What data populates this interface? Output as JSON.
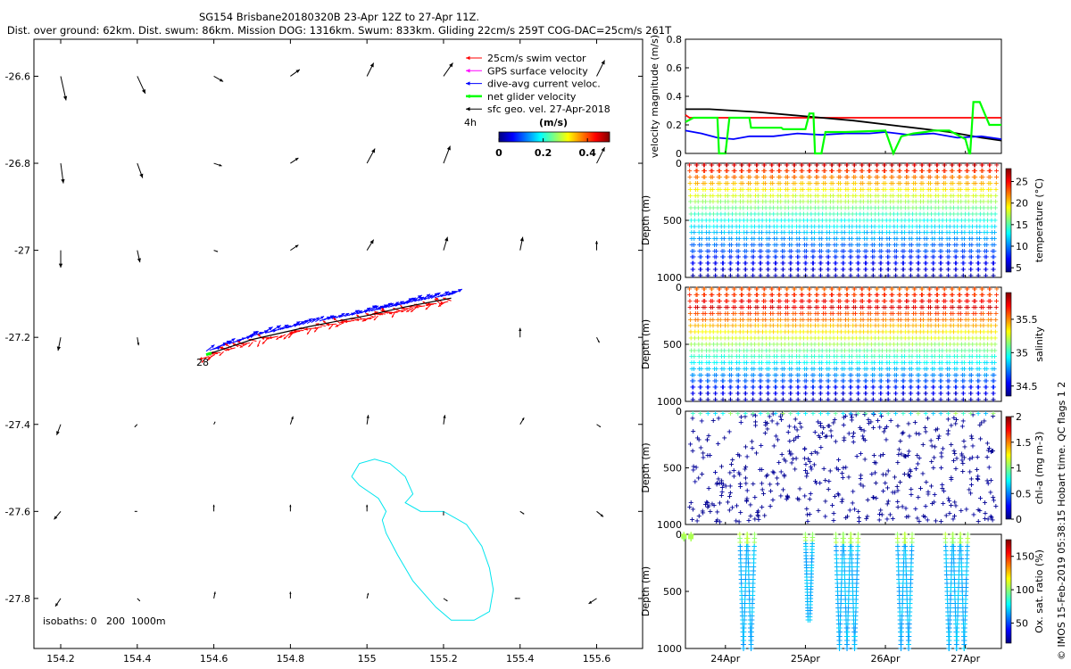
{
  "header": {
    "line1": "SG154 Brisbane20180320B 23-Apr 12Z to 27-Apr 11Z.",
    "line2": "Dist. over ground: 62km. Dist. swum: 86km. Mission DOG: 1316km. Swum: 833km. Gliding 22cm/s 259T COG-DAC=25cm/s 261T"
  },
  "footer": {
    "imos": "© IMOS 15-Feb-2019 05:38:15 Hobart time. QC flags 1  2"
  },
  "colors": {
    "swim": "#ff0000",
    "gps": "#ff00ff",
    "dac": "#0000ff",
    "net": "#00ff00",
    "sfc": "#000000",
    "isobath": "#00e5ee"
  },
  "chart_data": [
    {
      "type": "map",
      "xlabel": "Longitude",
      "ylabel": "Latitude",
      "xlim": [
        154.13,
        155.72
      ],
      "ylim": [
        -27.915,
        -26.515
      ],
      "x_ticks": [
        154.2,
        154.4,
        154.6,
        154.8,
        155,
        155.2,
        155.4,
        155.6
      ],
      "x_tick_labels": [
        "154.2",
        "154.4",
        "154.6",
        "154.8",
        "155",
        "155.2",
        "155.4",
        "155.6"
      ],
      "y_ticks": [
        -26.6,
        -26.8,
        -27,
        -27.2,
        -27.4,
        -27.6,
        -27.8
      ],
      "y_tick_labels": [
        "-26.6",
        "-26.8",
        "-27",
        "-27.2",
        "-27.4",
        "-27.6",
        "-27.8"
      ],
      "legend": [
        {
          "label": "25cm/s swim vector",
          "color": "#ff0000"
        },
        {
          "label": "GPS surface velocity",
          "color": "#ff00ff"
        },
        {
          "label": "dive-avg current veloc.",
          "color": "#0000ff"
        },
        {
          "label": "net glider velocity",
          "color": "#00ff00"
        },
        {
          "label": "sfc geo. vel. 27-Apr-2018",
          "color": "#000000"
        }
      ],
      "colorbar": {
        "label": "(m/s)",
        "time_note": "4h",
        "ticks": [
          "0",
          "0.2",
          "0.4"
        ],
        "range": [
          0,
          0.5
        ]
      },
      "track_label": "28",
      "isobath_note": "isobaths: 0   200  1000m",
      "track": {
        "lon": [
          154.58,
          154.7,
          154.85,
          155.0,
          155.1,
          155.22
        ],
        "lat": [
          -27.24,
          -27.205,
          -27.175,
          -27.15,
          -27.13,
          -27.11
        ]
      },
      "isobath_1000m": {
        "lon": [
          154.96,
          154.98,
          155.02,
          155.06,
          155.1,
          155.12,
          155.1,
          155.14,
          155.2,
          155.26,
          155.3,
          155.32,
          155.33,
          155.32,
          155.28,
          155.22,
          155.18,
          155.12,
          155.08,
          155.05,
          155.04,
          155.05,
          155.03,
          154.98,
          154.96
        ],
        "lat": [
          -27.52,
          -27.49,
          -27.48,
          -27.49,
          -27.52,
          -27.56,
          -27.58,
          -27.6,
          -27.6,
          -27.63,
          -27.68,
          -27.73,
          -27.78,
          -27.83,
          -27.85,
          -27.85,
          -27.82,
          -27.76,
          -27.7,
          -27.65,
          -27.62,
          -27.6,
          -27.57,
          -27.54,
          -27.52
        ]
      },
      "sfc_vectors": {
        "lons": [
          154.2,
          154.4,
          154.6,
          154.8,
          155.0,
          155.2,
          155.4,
          155.6
        ],
        "rows": [
          {
            "lat": -26.6,
            "u": [
              0.04,
              0.06,
              0.07,
              0.07,
              0.05,
              0.07,
              null,
              0.06
            ],
            "v": [
              -0.18,
              -0.13,
              -0.04,
              0.05,
              0.1,
              0.1,
              null,
              0.12
            ]
          },
          {
            "lat": -26.8,
            "u": [
              0.02,
              0.04,
              0.06,
              0.06,
              0.06,
              0.05,
              null,
              0.06
            ],
            "v": [
              -0.15,
              -0.11,
              -0.02,
              0.04,
              0.11,
              0.13,
              null,
              0.12
            ]
          },
          {
            "lat": -27.0,
            "u": [
              0.0,
              0.02,
              0.03,
              0.06,
              0.05,
              0.03,
              0.02,
              0.0
            ],
            "v": [
              -0.13,
              -0.09,
              -0.01,
              0.04,
              0.08,
              0.1,
              0.1,
              0.07
            ]
          },
          {
            "lat": -27.2,
            "u": [
              -0.02,
              0.01,
              null,
              null,
              null,
              null,
              0.0,
              0.02
            ],
            "v": [
              -0.1,
              -0.06,
              null,
              null,
              null,
              null,
              0.07,
              -0.04
            ]
          },
          {
            "lat": -27.4,
            "u": [
              -0.03,
              -0.02,
              0.01,
              0.02,
              0.01,
              0.01,
              0.03,
              0.03
            ],
            "v": [
              -0.08,
              -0.02,
              0.02,
              0.06,
              0.07,
              0.07,
              0.05,
              -0.02
            ]
          },
          {
            "lat": -27.6,
            "u": [
              -0.05,
              -0.02,
              0.0,
              0.0,
              0.0,
              0.0,
              0.03,
              0.05
            ],
            "v": [
              -0.06,
              0.0,
              0.05,
              0.05,
              0.05,
              -0.03,
              -0.02,
              -0.04
            ]
          },
          {
            "lat": -27.8,
            "u": [
              -0.04,
              0.02,
              0.01,
              0.0,
              0.01,
              0.03,
              -0.04,
              -0.06
            ],
            "v": [
              -0.06,
              -0.02,
              0.05,
              0.05,
              0.04,
              -0.02,
              0.0,
              -0.04
            ]
          }
        ]
      }
    },
    {
      "type": "line",
      "ylabel": "velocity magnitude (m/s)",
      "ylim": [
        0,
        0.8
      ],
      "yticks": [
        "0",
        "0.2",
        "0.4",
        "0.6",
        "0.8"
      ],
      "xlim_day": [
        23.5,
        27.45
      ],
      "series": [
        {
          "name": "swim vector",
          "color": "#ff0000",
          "t": [
            23.5,
            23.55,
            27.45
          ],
          "y": [
            0.27,
            0.25,
            0.25
          ]
        },
        {
          "name": "sfc geo. vel.",
          "color": "#000000",
          "t": [
            23.5,
            23.8,
            24.4,
            25.0,
            25.6,
            26.2,
            26.8,
            27.2,
            27.45
          ],
          "y": [
            0.31,
            0.31,
            0.29,
            0.26,
            0.23,
            0.19,
            0.15,
            0.11,
            0.09
          ]
        },
        {
          "name": "dive-avg current",
          "color": "#0000ff",
          "t": [
            23.5,
            23.7,
            23.9,
            24.1,
            24.3,
            24.6,
            24.9,
            25.2,
            25.5,
            25.8,
            26.0,
            26.3,
            26.6,
            26.9,
            27.2,
            27.45
          ],
          "y": [
            0.16,
            0.14,
            0.11,
            0.1,
            0.12,
            0.12,
            0.14,
            0.13,
            0.14,
            0.14,
            0.15,
            0.13,
            0.14,
            0.11,
            0.12,
            0.1
          ]
        },
        {
          "name": "net glider velocity",
          "color": "#00ff00",
          "t": [
            23.5,
            23.6,
            23.9,
            23.92,
            24.0,
            24.05,
            24.3,
            24.32,
            24.7,
            24.72,
            25.0,
            25.05,
            25.1,
            25.12,
            25.2,
            25.25,
            25.35,
            25.5,
            26.0,
            26.1,
            26.2,
            26.35,
            26.5,
            26.6,
            26.8,
            27.0,
            27.05,
            27.06,
            27.1,
            27.18,
            27.3,
            27.45
          ],
          "y": [
            0.22,
            0.25,
            0.25,
            0.0,
            0.0,
            0.25,
            0.25,
            0.18,
            0.18,
            0.17,
            0.17,
            0.28,
            0.28,
            0.0,
            0.0,
            0.15,
            0.15,
            0.15,
            0.16,
            0.0,
            0.12,
            0.14,
            0.15,
            0.16,
            0.16,
            0.1,
            0.0,
            0.0,
            0.36,
            0.36,
            0.2,
            0.2
          ]
        }
      ]
    },
    {
      "type": "scatter",
      "ylabel": "Depth (m)",
      "colorbar_label": "temperature (°C)",
      "ylim": [
        0,
        1000
      ],
      "yticks": [
        "0",
        "500",
        "1000"
      ],
      "clim": [
        4,
        28
      ],
      "cticks": [
        "5",
        "10",
        "15",
        "20",
        "25"
      ],
      "cvals": [
        5,
        10,
        15,
        20,
        25
      ],
      "dives": 41,
      "profile": "temperature"
    },
    {
      "type": "scatter",
      "ylabel": "Depth (m)",
      "colorbar_label": "salinity",
      "ylim": [
        0,
        1000
      ],
      "yticks": [
        "0",
        "500",
        "1000"
      ],
      "clim": [
        34.35,
        35.9
      ],
      "cticks": [
        "34.5",
        "35",
        "35.5"
      ],
      "cvals": [
        34.5,
        35,
        35.5
      ],
      "dives": 41,
      "profile": "salinity"
    },
    {
      "type": "scatter",
      "ylabel": "Depth (m)",
      "colorbar_label": "chl-a (mg m-3)",
      "ylim": [
        0,
        1000
      ],
      "yticks": [
        "0",
        "500",
        "1000"
      ],
      "clim": [
        0,
        2
      ],
      "cticks": [
        "0",
        "0.5",
        "1",
        "1.5",
        "2"
      ],
      "cvals": [
        0,
        0.5,
        1,
        1.5,
        2
      ],
      "dives": 41,
      "profile": "chl"
    },
    {
      "type": "scatter",
      "ylabel": "Depth (m)",
      "colorbar_label": "Ox. sat. ratio (%)",
      "ylim": [
        0,
        1000
      ],
      "yticks": [
        "0",
        "500",
        "1000"
      ],
      "clim": [
        20,
        175
      ],
      "cticks": [
        "50",
        "100",
        "150"
      ],
      "cvals": [
        50,
        100,
        150
      ],
      "x_ticks_day": [
        24,
        25,
        26,
        27
      ],
      "x_tick_labels": [
        "24Apr",
        "25Apr",
        "26Apr",
        "27Apr"
      ],
      "profile": "oxygen",
      "casts": [
        {
          "t0": 23.48,
          "dives": 1,
          "max": 40
        },
        {
          "t0": 24.18,
          "dives": 2,
          "max": 1000
        },
        {
          "t0": 25.0,
          "dives": 1,
          "max": 750
        },
        {
          "t0": 25.38,
          "dives": 3,
          "max": 1000
        },
        {
          "t0": 26.15,
          "dives": 2,
          "max": 1000
        },
        {
          "t0": 26.75,
          "dives": 3,
          "max": 1000
        }
      ]
    }
  ]
}
